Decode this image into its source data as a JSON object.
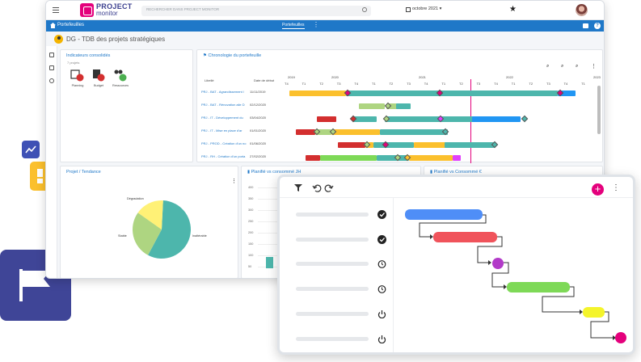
{
  "app": {
    "logo_line1": "PROJECT",
    "logo_line2": "monitor",
    "search_placeholder": "RECHERCHER DANS PROJECT MONITOR",
    "date_selector": "octobre 2021",
    "bluebar_title": "Portefeuilles",
    "bluebar_tab": "Portefeuilles",
    "page_title": "DG - TDB des projets stratégiques"
  },
  "indicators": {
    "title": "Indicateurs consolidés",
    "subtitle": "7 projets",
    "items": [
      {
        "label": "Planning"
      },
      {
        "label": "Budget"
      },
      {
        "label": "Ressources"
      }
    ]
  },
  "gantt": {
    "title": "Chronologie du portefeuille",
    "col_label": "Libellé",
    "col_date": "Date de début",
    "years": [
      "2019",
      "2020",
      "2021",
      "2022",
      "2023",
      "2024"
    ],
    "quarters": [
      "T4",
      "T1",
      "T2",
      "T3",
      "T4",
      "T1",
      "T2",
      "T3",
      "T4",
      "T1",
      "T2",
      "T3",
      "T4",
      "T1",
      "T2",
      "T3",
      "T4",
      "T1"
    ],
    "rows": [
      {
        "label": "PRJ - BAT - Agrandissement /",
        "date": "11/11/2019"
      },
      {
        "label": "PRJ - BAT - Rénovation aile D",
        "date": "02/12/2020"
      },
      {
        "label": "PRJ - IT - Développement du",
        "date": "03/04/2020"
      },
      {
        "label": "PRJ - IT - Mise en place d'ar",
        "date": "01/01/2020"
      },
      {
        "label": "PRJ - PROD - Création d'un no",
        "date": "01/06/2020"
      },
      {
        "label": "PRJ - RH - Création d'un porta",
        "date": "27/02/2020"
      }
    ]
  },
  "bottom_panels": {
    "trend_title": "Projet / Tendance",
    "plan_h_title": "Planifié vs consommé JH",
    "plan_eur_title": "Planifié vs Consommé €",
    "y_ticks": [
      "400",
      "350",
      "300",
      "250",
      "200",
      "150",
      "100",
      "50"
    ]
  },
  "chart_data": {
    "type": "pie",
    "title": "Projet / Tendance",
    "labels": [
      "Inaltérable",
      "Stable",
      "Dégradation"
    ],
    "values": [
      57,
      27,
      16
    ],
    "colors": [
      "#4db6ac",
      "#aed581",
      "#fff176"
    ]
  },
  "colors": {
    "brand_blue": "#1f78c8",
    "brand_pink": "#e4007c",
    "teal": "#4db6ac",
    "yellow": "#fbc02d",
    "red": "#d32f2f",
    "navy": "#3b3f8f"
  }
}
